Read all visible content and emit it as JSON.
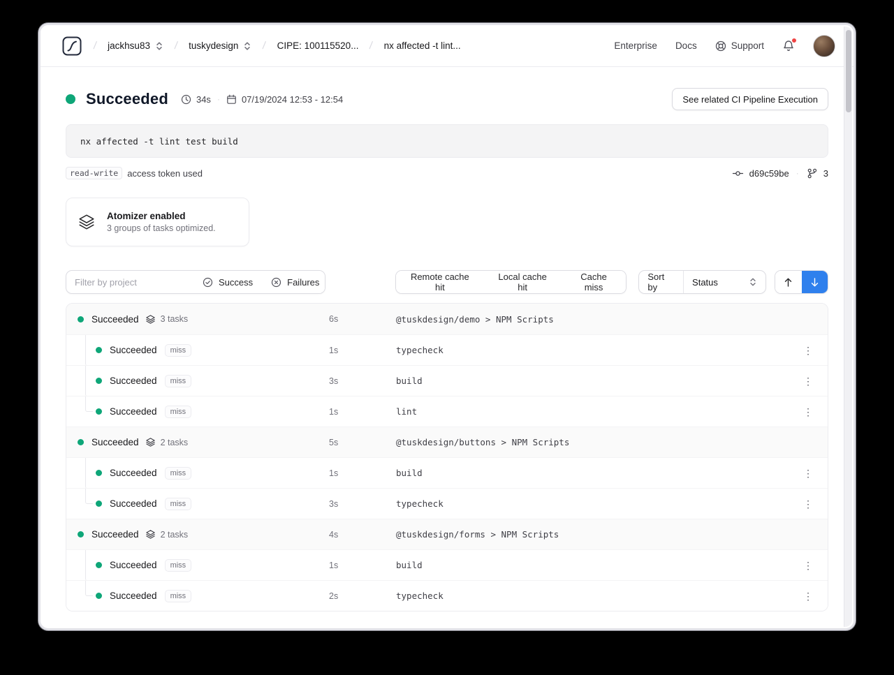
{
  "topbar": {
    "breadcrumbs": [
      {
        "label": "jackhsu83"
      },
      {
        "label": "tuskydesign"
      },
      {
        "label": "CIPE: 100115520..."
      },
      {
        "label": "nx affected -t lint..."
      }
    ],
    "nav": {
      "enterprise": "Enterprise",
      "docs": "Docs",
      "support": "Support"
    }
  },
  "header": {
    "status": "Succeeded",
    "duration": "34s",
    "date_range": "07/19/2024 12:53 - 12:54",
    "related_button": "See related CI Pipeline Execution"
  },
  "command": "nx affected -t lint test build",
  "token": {
    "scope": "read-write",
    "text": "access token used",
    "commit": "d69c59be",
    "branch_count": "3"
  },
  "atomizer": {
    "title": "Atomizer enabled",
    "subtitle": "3 groups of tasks optimized."
  },
  "toolbar": {
    "filter_placeholder": "Filter by project",
    "success_label": "Success",
    "failures_label": "Failures",
    "cache_buttons": [
      "Remote cache hit",
      "Local cache hit",
      "Cache miss"
    ],
    "sort_label": "Sort by",
    "sort_value": "Status"
  },
  "colors": {
    "success_green": "#0ea678",
    "accent_blue": "#2f80ed",
    "notification_red": "#ef4444"
  },
  "tasks": [
    {
      "status": "Succeeded",
      "count": "3 tasks",
      "duration": "6s",
      "target": "@tuskdesign/demo > NPM Scripts",
      "children": [
        {
          "status": "Succeeded",
          "cache": "miss",
          "duration": "1s",
          "target": "typecheck"
        },
        {
          "status": "Succeeded",
          "cache": "miss",
          "duration": "3s",
          "target": "build"
        },
        {
          "status": "Succeeded",
          "cache": "miss",
          "duration": "1s",
          "target": "lint"
        }
      ]
    },
    {
      "status": "Succeeded",
      "count": "2 tasks",
      "duration": "5s",
      "target": "@tuskdesign/buttons > NPM Scripts",
      "children": [
        {
          "status": "Succeeded",
          "cache": "miss",
          "duration": "1s",
          "target": "build"
        },
        {
          "status": "Succeeded",
          "cache": "miss",
          "duration": "3s",
          "target": "typecheck"
        }
      ]
    },
    {
      "status": "Succeeded",
      "count": "2 tasks",
      "duration": "4s",
      "target": "@tuskdesign/forms > NPM Scripts",
      "children": [
        {
          "status": "Succeeded",
          "cache": "miss",
          "duration": "1s",
          "target": "build"
        },
        {
          "status": "Succeeded",
          "cache": "miss",
          "duration": "2s",
          "target": "typecheck"
        }
      ]
    }
  ]
}
